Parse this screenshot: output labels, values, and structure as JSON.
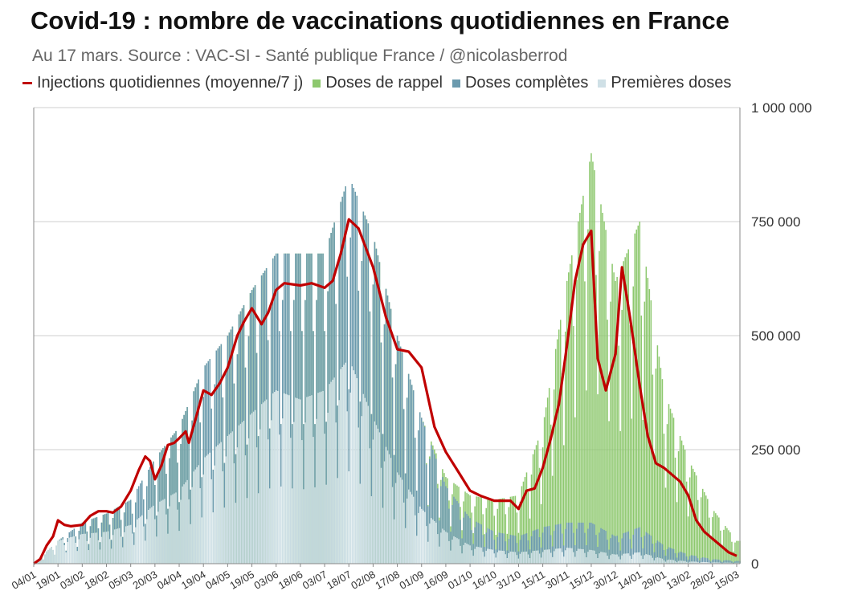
{
  "title": "Covid-19 : nombre de vaccinations quotidiennes en France",
  "subtitle": "Au 17 mars. Source : VAC-SI - Santé publique France / @nicolasberrod",
  "legend": [
    {
      "key": "avg",
      "label": "Injections quotidiennes (moyenne/7 j)",
      "color": "#c00000",
      "kind": "line"
    },
    {
      "key": "rappel",
      "label": "Doses de rappel",
      "color": "#8dc86e",
      "kind": "square"
    },
    {
      "key": "completes",
      "label": "Doses complètes",
      "color": "#6b9aae",
      "kind": "square"
    },
    {
      "key": "premieres",
      "label": "Premières doses",
      "color": "#cfe0e6",
      "kind": "square"
    }
  ],
  "chart_data": {
    "type": "bar",
    "stacked": true,
    "y_axis_position": "right",
    "ylim": [
      0,
      1000000
    ],
    "y_ticks": [
      {
        "value": 0,
        "label": "0"
      },
      {
        "value": 250000,
        "label": "250 000"
      },
      {
        "value": 500000,
        "label": "500 000"
      },
      {
        "value": 750000,
        "label": "750 000"
      },
      {
        "value": 1000000,
        "label": "1 000 000"
      }
    ],
    "x_start": "2021-01-04",
    "x_end": "2022-03-17",
    "x_tick_labels": [
      "04/01",
      "19/01",
      "03/02",
      "18/02",
      "05/03",
      "20/03",
      "04/04",
      "19/04",
      "04/05",
      "19/05",
      "03/06",
      "18/06",
      "03/07",
      "18/07",
      "02/08",
      "17/08",
      "01/09",
      "16/09",
      "01/10",
      "16/10",
      "31/10",
      "15/11",
      "30/11",
      "15/12",
      "30/12",
      "14/01",
      "29/01",
      "13/02",
      "28/02",
      "15/03"
    ],
    "grid": "horizontal",
    "series_bar_envelopes": [
      {
        "name": "Premières doses",
        "color": "#cfe0e6",
        "points": [
          [
            "04/01",
            0
          ],
          [
            "19/01",
            50000
          ],
          [
            "03/02",
            65000
          ],
          [
            "18/02",
            70000
          ],
          [
            "05/03",
            85000
          ],
          [
            "20/03",
            130000
          ],
          [
            "04/04",
            160000
          ],
          [
            "19/04",
            230000
          ],
          [
            "04/05",
            280000
          ],
          [
            "19/05",
            330000
          ],
          [
            "03/06",
            380000
          ],
          [
            "18/06",
            360000
          ],
          [
            "03/07",
            380000
          ],
          [
            "18/07",
            450000
          ],
          [
            "02/08",
            320000
          ],
          [
            "17/08",
            200000
          ],
          [
            "01/09",
            120000
          ],
          [
            "16/09",
            70000
          ],
          [
            "01/10",
            40000
          ],
          [
            "16/10",
            30000
          ],
          [
            "31/10",
            25000
          ],
          [
            "15/11",
            30000
          ],
          [
            "30/11",
            35000
          ],
          [
            "15/12",
            30000
          ],
          [
            "30/12",
            20000
          ],
          [
            "14/01",
            25000
          ],
          [
            "29/01",
            10000
          ],
          [
            "13/02",
            5000
          ],
          [
            "28/02",
            3000
          ],
          [
            "15/03",
            2000
          ]
        ]
      },
      {
        "name": "Doses complètes",
        "color": "#6b9aae",
        "points": [
          [
            "04/01",
            0
          ],
          [
            "19/01",
            50000
          ],
          [
            "03/02",
            90000
          ],
          [
            "18/02",
            110000
          ],
          [
            "05/03",
            140000
          ],
          [
            "20/03",
            230000
          ],
          [
            "04/04",
            300000
          ],
          [
            "19/04",
            430000
          ],
          [
            "04/05",
            500000
          ],
          [
            "19/05",
            600000
          ],
          [
            "03/06",
            680000
          ],
          [
            "18/06",
            680000
          ],
          [
            "03/07",
            680000
          ],
          [
            "18/07",
            850000
          ],
          [
            "02/08",
            720000
          ],
          [
            "17/08",
            500000
          ],
          [
            "01/09",
            320000
          ],
          [
            "16/09",
            170000
          ],
          [
            "01/10",
            100000
          ],
          [
            "16/10",
            70000
          ],
          [
            "31/10",
            60000
          ],
          [
            "15/11",
            80000
          ],
          [
            "30/11",
            90000
          ],
          [
            "15/12",
            90000
          ],
          [
            "30/12",
            60000
          ],
          [
            "14/01",
            80000
          ],
          [
            "29/01",
            40000
          ],
          [
            "13/02",
            20000
          ],
          [
            "28/02",
            10000
          ],
          [
            "15/03",
            6000
          ]
        ]
      },
      {
        "name": "Doses de rappel",
        "color": "#8dc86e",
        "points": [
          [
            "04/01",
            0
          ],
          [
            "19/01",
            50000
          ],
          [
            "03/02",
            90000
          ],
          [
            "18/02",
            110000
          ],
          [
            "05/03",
            140000
          ],
          [
            "20/03",
            230000
          ],
          [
            "04/04",
            300000
          ],
          [
            "19/04",
            430000
          ],
          [
            "04/05",
            500000
          ],
          [
            "19/05",
            600000
          ],
          [
            "03/06",
            680000
          ],
          [
            "18/06",
            680000
          ],
          [
            "03/07",
            680000
          ],
          [
            "18/07",
            850000
          ],
          [
            "02/08",
            720000
          ],
          [
            "17/08",
            500000
          ],
          [
            "01/09",
            320000
          ],
          [
            "16/09",
            190000
          ],
          [
            "01/10",
            150000
          ],
          [
            "16/10",
            140000
          ],
          [
            "31/10",
            150000
          ],
          [
            "15/11",
            300000
          ],
          [
            "30/11",
            620000
          ],
          [
            "15/12",
            900000
          ],
          [
            "30/12",
            620000
          ],
          [
            "14/01",
            750000
          ],
          [
            "29/01",
            380000
          ],
          [
            "13/02",
            230000
          ],
          [
            "28/02",
            120000
          ],
          [
            "15/03",
            50000
          ]
        ]
      }
    ],
    "avg_series": {
      "name": "Injections quotidiennes (moyenne/7 j)",
      "color": "#c00000",
      "points": [
        [
          "04/01",
          0
        ],
        [
          "08/01",
          10000
        ],
        [
          "12/01",
          40000
        ],
        [
          "16/01",
          60000
        ],
        [
          "19/01",
          95000
        ],
        [
          "23/01",
          85000
        ],
        [
          "27/01",
          82000
        ],
        [
          "03/02",
          85000
        ],
        [
          "08/02",
          105000
        ],
        [
          "13/02",
          115000
        ],
        [
          "18/02",
          115000
        ],
        [
          "22/02",
          112000
        ],
        [
          "27/02",
          125000
        ],
        [
          "05/03",
          160000
        ],
        [
          "10/03",
          205000
        ],
        [
          "14/03",
          235000
        ],
        [
          "17/03",
          225000
        ],
        [
          "20/03",
          185000
        ],
        [
          "24/03",
          215000
        ],
        [
          "28/03",
          260000
        ],
        [
          "01/04",
          265000
        ],
        [
          "04/04",
          275000
        ],
        [
          "08/04",
          290000
        ],
        [
          "10/04",
          265000
        ],
        [
          "14/04",
          315000
        ],
        [
          "19/04",
          380000
        ],
        [
          "24/04",
          370000
        ],
        [
          "29/04",
          395000
        ],
        [
          "04/05",
          430000
        ],
        [
          "10/05",
          500000
        ],
        [
          "14/05",
          530000
        ],
        [
          "19/05",
          560000
        ],
        [
          "25/05",
          525000
        ],
        [
          "29/05",
          550000
        ],
        [
          "03/06",
          600000
        ],
        [
          "08/06",
          615000
        ],
        [
          "18/06",
          610000
        ],
        [
          "25/06",
          615000
        ],
        [
          "03/07",
          605000
        ],
        [
          "08/07",
          620000
        ],
        [
          "13/07",
          680000
        ],
        [
          "18/07",
          755000
        ],
        [
          "24/07",
          735000
        ],
        [
          "02/08",
          650000
        ],
        [
          "10/08",
          540000
        ],
        [
          "17/08",
          470000
        ],
        [
          "24/08",
          465000
        ],
        [
          "01/09",
          430000
        ],
        [
          "09/09",
          300000
        ],
        [
          "16/09",
          245000
        ],
        [
          "24/09",
          200000
        ],
        [
          "01/10",
          160000
        ],
        [
          "08/10",
          148000
        ],
        [
          "16/10",
          138000
        ],
        [
          "26/10",
          138000
        ],
        [
          "31/10",
          120000
        ],
        [
          "05/11",
          160000
        ],
        [
          "10/11",
          165000
        ],
        [
          "15/11",
          210000
        ],
        [
          "20/11",
          275000
        ],
        [
          "25/11",
          350000
        ],
        [
          "30/11",
          480000
        ],
        [
          "05/12",
          620000
        ],
        [
          "10/12",
          700000
        ],
        [
          "15/12",
          730000
        ],
        [
          "19/12",
          450000
        ],
        [
          "24/12",
          380000
        ],
        [
          "30/12",
          460000
        ],
        [
          "03/01",
          650000
        ],
        [
          "08/01",
          540000
        ],
        [
          "14/01",
          390000
        ],
        [
          "19/01",
          280000
        ],
        [
          "24/01",
          220000
        ],
        [
          "29/01",
          210000
        ],
        [
          "03/02",
          195000
        ],
        [
          "08/02",
          180000
        ],
        [
          "13/02",
          150000
        ],
        [
          "18/02",
          95000
        ],
        [
          "23/02",
          70000
        ],
        [
          "28/02",
          55000
        ],
        [
          "05/03",
          40000
        ],
        [
          "10/03",
          25000
        ],
        [
          "15/03",
          17000
        ]
      ]
    }
  }
}
